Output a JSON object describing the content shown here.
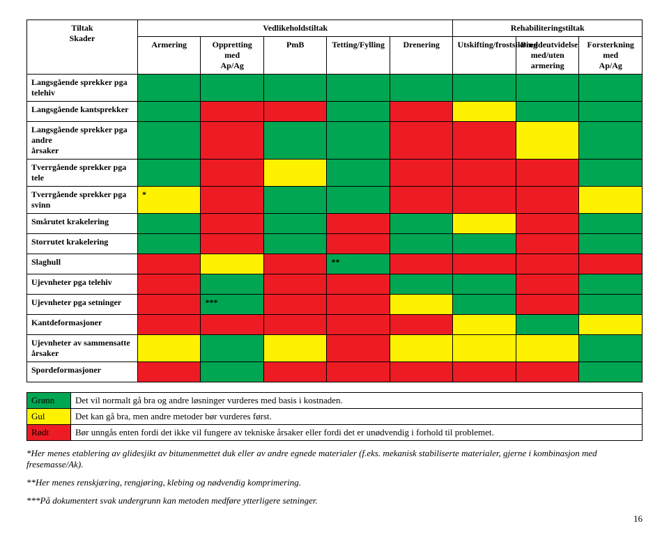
{
  "colors": {
    "green": "#00a651",
    "yellow": "#fff200",
    "red": "#ed1c24",
    "white": "#ffffff"
  },
  "headers": {
    "corner_top": "Tiltak",
    "corner_bottom": "Skader",
    "group_left": "Vedlikeholdstiltak",
    "group_right": "Rehabiliteringstiltak",
    "cols": [
      "Armering",
      "Oppretting med\nAp/Ag",
      "PmB",
      "Tetting/Fylling",
      "Drenering",
      "Utskifting/frostsikring",
      "Breddeutvidelse med/uten\narmering",
      "Forsterkning med\nAp/Ag"
    ]
  },
  "rows": [
    {
      "label": "Langsgående sprekker pga telehiv",
      "cells": [
        {
          "c": "green"
        },
        {
          "c": "green"
        },
        {
          "c": "green"
        },
        {
          "c": "green"
        },
        {
          "c": "green"
        },
        {
          "c": "green"
        },
        {
          "c": "green"
        },
        {
          "c": "green"
        }
      ]
    },
    {
      "label": "Langsgående kantsprekker",
      "cells": [
        {
          "c": "green"
        },
        {
          "c": "red"
        },
        {
          "c": "red"
        },
        {
          "c": "green"
        },
        {
          "c": "red"
        },
        {
          "c": "yellow"
        },
        {
          "c": "green"
        },
        {
          "c": "green"
        }
      ]
    },
    {
      "label": "Langsgående sprekker pga andre\nårsaker",
      "cells": [
        {
          "c": "green"
        },
        {
          "c": "red"
        },
        {
          "c": "green"
        },
        {
          "c": "green"
        },
        {
          "c": "red"
        },
        {
          "c": "red"
        },
        {
          "c": "yellow"
        },
        {
          "c": "green"
        }
      ]
    },
    {
      "label": "Tverrgående sprekker pga tele",
      "cells": [
        {
          "c": "green"
        },
        {
          "c": "red"
        },
        {
          "c": "yellow"
        },
        {
          "c": "green"
        },
        {
          "c": "red"
        },
        {
          "c": "red"
        },
        {
          "c": "red"
        },
        {
          "c": "green"
        }
      ]
    },
    {
      "label": "Tverrgående sprekker pga svinn",
      "cells": [
        {
          "c": "yellow",
          "t": "*"
        },
        {
          "c": "red"
        },
        {
          "c": "green"
        },
        {
          "c": "green"
        },
        {
          "c": "red"
        },
        {
          "c": "red"
        },
        {
          "c": "red"
        },
        {
          "c": "yellow"
        }
      ]
    },
    {
      "label": "Smårutet krakelering",
      "cells": [
        {
          "c": "green"
        },
        {
          "c": "red"
        },
        {
          "c": "green"
        },
        {
          "c": "red"
        },
        {
          "c": "green"
        },
        {
          "c": "yellow"
        },
        {
          "c": "red"
        },
        {
          "c": "green"
        }
      ]
    },
    {
      "label": "Storrutet krakelering",
      "cells": [
        {
          "c": "green"
        },
        {
          "c": "red"
        },
        {
          "c": "green"
        },
        {
          "c": "red"
        },
        {
          "c": "green"
        },
        {
          "c": "green"
        },
        {
          "c": "red"
        },
        {
          "c": "green"
        }
      ]
    },
    {
      "label": "Slaghull",
      "cells": [
        {
          "c": "red"
        },
        {
          "c": "yellow"
        },
        {
          "c": "red"
        },
        {
          "c": "green",
          "t": "**"
        },
        {
          "c": "red"
        },
        {
          "c": "red"
        },
        {
          "c": "red"
        },
        {
          "c": "red"
        }
      ]
    },
    {
      "label": "Ujevnheter pga telehiv",
      "cells": [
        {
          "c": "red"
        },
        {
          "c": "green"
        },
        {
          "c": "red"
        },
        {
          "c": "red"
        },
        {
          "c": "green"
        },
        {
          "c": "green"
        },
        {
          "c": "red"
        },
        {
          "c": "green"
        }
      ]
    },
    {
      "label": "Ujevnheter pga setninger",
      "cells": [
        {
          "c": "red"
        },
        {
          "c": "green",
          "t": "***"
        },
        {
          "c": "red"
        },
        {
          "c": "red"
        },
        {
          "c": "yellow"
        },
        {
          "c": "green"
        },
        {
          "c": "red"
        },
        {
          "c": "green"
        }
      ]
    },
    {
      "label": "Kantdeformasjoner",
      "cells": [
        {
          "c": "red"
        },
        {
          "c": "red"
        },
        {
          "c": "red"
        },
        {
          "c": "red"
        },
        {
          "c": "red"
        },
        {
          "c": "yellow"
        },
        {
          "c": "green"
        },
        {
          "c": "yellow"
        }
      ]
    },
    {
      "label": "Ujevnheter av sammensatte\nårsaker",
      "cells": [
        {
          "c": "yellow"
        },
        {
          "c": "green"
        },
        {
          "c": "yellow"
        },
        {
          "c": "red"
        },
        {
          "c": "yellow"
        },
        {
          "c": "yellow"
        },
        {
          "c": "yellow"
        },
        {
          "c": "green"
        }
      ]
    },
    {
      "label": "Spordeformasjoner",
      "cells": [
        {
          "c": "red"
        },
        {
          "c": "green"
        },
        {
          "c": "red"
        },
        {
          "c": "red"
        },
        {
          "c": "red"
        },
        {
          "c": "red"
        },
        {
          "c": "red"
        },
        {
          "c": "green"
        }
      ]
    }
  ],
  "legend": [
    {
      "key": "Grønn",
      "color": "green",
      "text": "Det vil normalt gå bra og andre løsninger vurderes med basis i kostnaden."
    },
    {
      "key": "Gul",
      "color": "yellow",
      "text": "Det kan gå bra, men andre metoder bør vurderes først."
    },
    {
      "key": "Rødt",
      "color": "red",
      "text": "Bør unngås enten fordi det ikke vil fungere av tekniske årsaker eller fordi det er unødvendig i forhold til problemet."
    }
  ],
  "notes": [
    "*Her menes etablering av glidesjikt av bitumenmettet duk eller av andre egnede materialer (f.eks. mekanisk stabiliserte materialer, gjerne i kombinasjon med fresemasse/Ak).",
    "**Her menes renskjæring, rengjøring, klebing og nødvendig komprimering.",
    "***På dokumentert svak undergrunn kan metoden medføre ytterligere setninger."
  ],
  "page_number": "16"
}
